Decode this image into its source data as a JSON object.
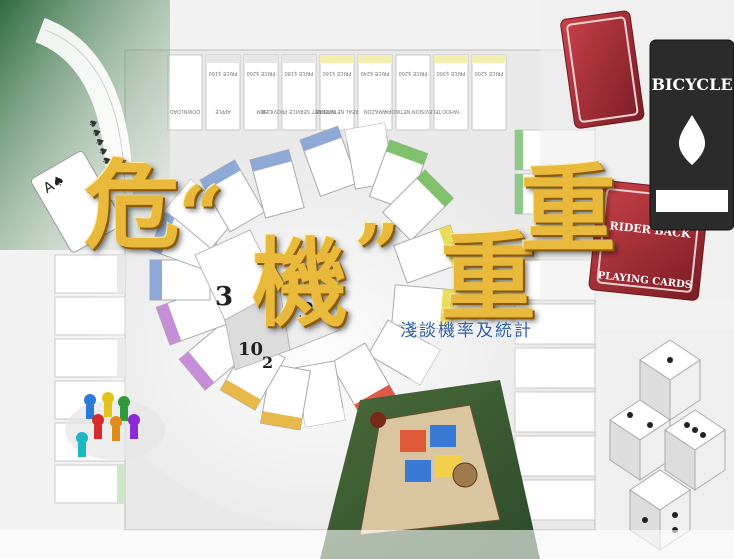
{
  "title": {
    "chars": [
      "危",
      "“",
      "機",
      "”",
      "重",
      "重"
    ]
  },
  "subtitle": "淺談機率及統計",
  "board_labels": {
    "top_row": [
      "DOWNLOAD",
      "APPLE",
      "IBM",
      "INTERNET SERVICE PROVIDER",
      "REAL NETWORKS",
      "AMAZON",
      "TELEVISION NETWORK",
      "YAHOO"
    ],
    "prices": [
      "PRICE $160",
      "PRICE $200",
      "PRICE $180",
      "PRICE $160",
      "PRICE $240",
      "PRICE $200",
      "PRICE $300",
      "PRICE $200"
    ]
  },
  "playing_cards": {
    "brand": "BICYCLE",
    "back_label": "RIDER BACK",
    "face_label": "PLAYING CARDS"
  },
  "dice_labels": [
    "3",
    "3",
    "10",
    "2"
  ]
}
